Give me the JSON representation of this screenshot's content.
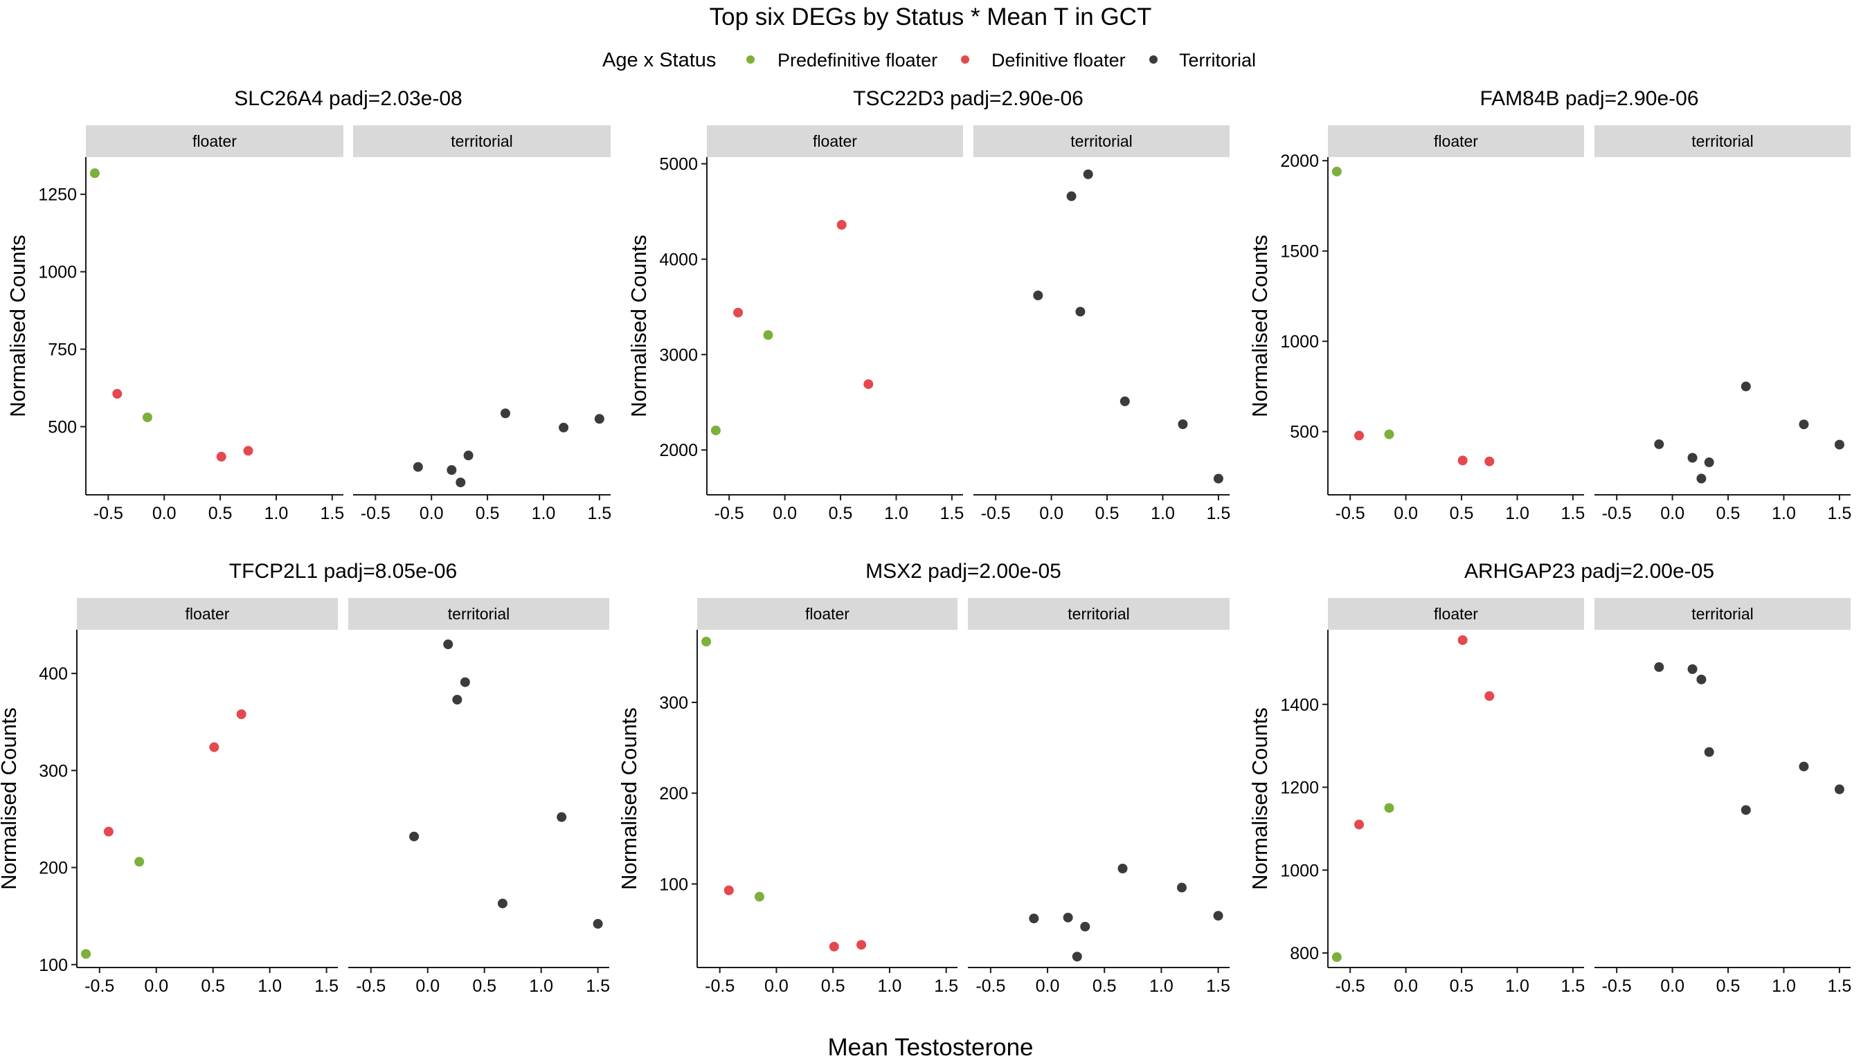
{
  "chart_data": {
    "type": "scatter",
    "title": "Top six DEGs by Status * Mean T in GCT",
    "xlabel": "Mean Testosterone",
    "ylabel": "Normalised Counts",
    "legend": {
      "title": "Age x Status",
      "position": "top",
      "entries": [
        {
          "name": "Predefinitive floater",
          "color": "#7cb03a"
        },
        {
          "name": "Definitive floater",
          "color": "#e5484d"
        },
        {
          "name": "Territorial",
          "color": "#3b3b3b"
        }
      ]
    },
    "facets": [
      "floater",
      "territorial"
    ],
    "xlim": [
      -0.7,
      1.6
    ],
    "xticks": [
      -0.5,
      0.0,
      0.5,
      1.0,
      1.5
    ],
    "xtick_labels": [
      "-0.5",
      "0.0",
      "0.5",
      "1.0",
      "1.5"
    ],
    "grid": false,
    "panels": [
      {
        "title": "SLC26A4 padj=2.03e-08",
        "ylim": [
          280,
          1370
        ],
        "yticks": [
          500,
          750,
          1000,
          1250
        ],
        "ytick_labels": [
          "500",
          "750",
          "1000",
          "1250"
        ],
        "floater": [
          {
            "x": -0.62,
            "y": 1318,
            "group": "Predefinitive floater"
          },
          {
            "x": -0.15,
            "y": 530,
            "group": "Predefinitive floater"
          },
          {
            "x": -0.42,
            "y": 606,
            "group": "Definitive floater"
          },
          {
            "x": 0.51,
            "y": 403,
            "group": "Definitive floater"
          },
          {
            "x": 0.75,
            "y": 422,
            "group": "Definitive floater"
          }
        ],
        "territorial": [
          {
            "x": -0.12,
            "y": 370,
            "group": "Territorial"
          },
          {
            "x": 0.18,
            "y": 360,
            "group": "Territorial"
          },
          {
            "x": 0.26,
            "y": 320,
            "group": "Territorial"
          },
          {
            "x": 0.33,
            "y": 407,
            "group": "Territorial"
          },
          {
            "x": 0.66,
            "y": 543,
            "group": "Territorial"
          },
          {
            "x": 1.18,
            "y": 497,
            "group": "Territorial"
          },
          {
            "x": 1.5,
            "y": 525,
            "group": "Territorial"
          }
        ]
      },
      {
        "title": "TSC22D3 padj=2.90e-06",
        "ylim": [
          1530,
          5070
        ],
        "yticks": [
          2000,
          3000,
          4000,
          5000
        ],
        "ytick_labels": [
          "2000",
          "3000",
          "4000",
          "5000"
        ],
        "floater": [
          {
            "x": -0.62,
            "y": 2205,
            "group": "Predefinitive floater"
          },
          {
            "x": -0.15,
            "y": 3205,
            "group": "Predefinitive floater"
          },
          {
            "x": -0.42,
            "y": 3440,
            "group": "Definitive floater"
          },
          {
            "x": 0.51,
            "y": 4360,
            "group": "Definitive floater"
          },
          {
            "x": 0.75,
            "y": 2690,
            "group": "Definitive floater"
          }
        ],
        "territorial": [
          {
            "x": -0.12,
            "y": 3620,
            "group": "Territorial"
          },
          {
            "x": 0.18,
            "y": 4660,
            "group": "Territorial"
          },
          {
            "x": 0.26,
            "y": 3450,
            "group": "Territorial"
          },
          {
            "x": 0.33,
            "y": 4890,
            "group": "Territorial"
          },
          {
            "x": 0.66,
            "y": 2510,
            "group": "Territorial"
          },
          {
            "x": 1.18,
            "y": 2270,
            "group": "Territorial"
          },
          {
            "x": 1.5,
            "y": 1700,
            "group": "Territorial"
          }
        ]
      },
      {
        "title": "FAM84B padj=2.90e-06",
        "ylim": [
          150,
          2020
        ],
        "yticks": [
          500,
          1000,
          1500,
          2000
        ],
        "ytick_labels": [
          "500",
          "1000",
          "1500",
          "2000"
        ],
        "floater": [
          {
            "x": -0.62,
            "y": 1940,
            "group": "Predefinitive floater"
          },
          {
            "x": -0.15,
            "y": 485,
            "group": "Predefinitive floater"
          },
          {
            "x": -0.42,
            "y": 478,
            "group": "Definitive floater"
          },
          {
            "x": 0.51,
            "y": 340,
            "group": "Definitive floater"
          },
          {
            "x": 0.75,
            "y": 335,
            "group": "Definitive floater"
          }
        ],
        "territorial": [
          {
            "x": -0.12,
            "y": 430,
            "group": "Territorial"
          },
          {
            "x": 0.18,
            "y": 355,
            "group": "Territorial"
          },
          {
            "x": 0.26,
            "y": 240,
            "group": "Territorial"
          },
          {
            "x": 0.33,
            "y": 330,
            "group": "Territorial"
          },
          {
            "x": 0.66,
            "y": 750,
            "group": "Territorial"
          },
          {
            "x": 1.18,
            "y": 540,
            "group": "Territorial"
          },
          {
            "x": 1.5,
            "y": 428,
            "group": "Territorial"
          }
        ]
      },
      {
        "title": "TFCP2L1 padj=8.05e-06",
        "ylim": [
          97,
          445
        ],
        "yticks": [
          100,
          200,
          300,
          400
        ],
        "ytick_labels": [
          "100",
          "200",
          "300",
          "400"
        ],
        "floater": [
          {
            "x": -0.62,
            "y": 111,
            "group": "Predefinitive floater"
          },
          {
            "x": -0.15,
            "y": 206,
            "group": "Predefinitive floater"
          },
          {
            "x": -0.42,
            "y": 237,
            "group": "Definitive floater"
          },
          {
            "x": 0.51,
            "y": 324,
            "group": "Definitive floater"
          },
          {
            "x": 0.75,
            "y": 358,
            "group": "Definitive floater"
          }
        ],
        "territorial": [
          {
            "x": -0.12,
            "y": 232,
            "group": "Territorial"
          },
          {
            "x": 0.18,
            "y": 430,
            "group": "Territorial"
          },
          {
            "x": 0.26,
            "y": 373,
            "group": "Territorial"
          },
          {
            "x": 0.33,
            "y": 391,
            "group": "Territorial"
          },
          {
            "x": 0.66,
            "y": 163,
            "group": "Territorial"
          },
          {
            "x": 1.18,
            "y": 252,
            "group": "Territorial"
          },
          {
            "x": 1.5,
            "y": 142,
            "group": "Territorial"
          }
        ]
      },
      {
        "title": "MSX2 padj=2.00e-05",
        "ylim": [
          8,
          380
        ],
        "yticks": [
          100,
          200,
          300
        ],
        "ytick_labels": [
          "100",
          "200",
          "300"
        ],
        "floater": [
          {
            "x": -0.62,
            "y": 367,
            "group": "Predefinitive floater"
          },
          {
            "x": -0.15,
            "y": 86,
            "group": "Predefinitive floater"
          },
          {
            "x": -0.42,
            "y": 93,
            "group": "Definitive floater"
          },
          {
            "x": 0.51,
            "y": 31,
            "group": "Definitive floater"
          },
          {
            "x": 0.75,
            "y": 33,
            "group": "Definitive floater"
          }
        ],
        "territorial": [
          {
            "x": -0.12,
            "y": 62,
            "group": "Territorial"
          },
          {
            "x": 0.18,
            "y": 63,
            "group": "Territorial"
          },
          {
            "x": 0.26,
            "y": 20,
            "group": "Territorial"
          },
          {
            "x": 0.33,
            "y": 53,
            "group": "Territorial"
          },
          {
            "x": 0.66,
            "y": 117,
            "group": "Territorial"
          },
          {
            "x": 1.18,
            "y": 96,
            "group": "Territorial"
          },
          {
            "x": 1.5,
            "y": 65,
            "group": "Territorial"
          }
        ]
      },
      {
        "title": "ARHGAP23 padj=2.00e-05",
        "ylim": [
          765,
          1580
        ],
        "yticks": [
          800,
          1000,
          1200,
          1400
        ],
        "ytick_labels": [
          "800",
          "1000",
          "1200",
          "1400"
        ],
        "floater": [
          {
            "x": -0.62,
            "y": 790,
            "group": "Predefinitive floater"
          },
          {
            "x": -0.15,
            "y": 1150,
            "group": "Predefinitive floater"
          },
          {
            "x": -0.42,
            "y": 1110,
            "group": "Definitive floater"
          },
          {
            "x": 0.51,
            "y": 1555,
            "group": "Definitive floater"
          },
          {
            "x": 0.75,
            "y": 1420,
            "group": "Definitive floater"
          }
        ],
        "territorial": [
          {
            "x": -0.12,
            "y": 1490,
            "group": "Territorial"
          },
          {
            "x": 0.18,
            "y": 1485,
            "group": "Territorial"
          },
          {
            "x": 0.26,
            "y": 1460,
            "group": "Territorial"
          },
          {
            "x": 0.33,
            "y": 1285,
            "group": "Territorial"
          },
          {
            "x": 0.66,
            "y": 1145,
            "group": "Territorial"
          },
          {
            "x": 1.18,
            "y": 1250,
            "group": "Territorial"
          },
          {
            "x": 1.5,
            "y": 1195,
            "group": "Territorial"
          }
        ]
      }
    ]
  }
}
